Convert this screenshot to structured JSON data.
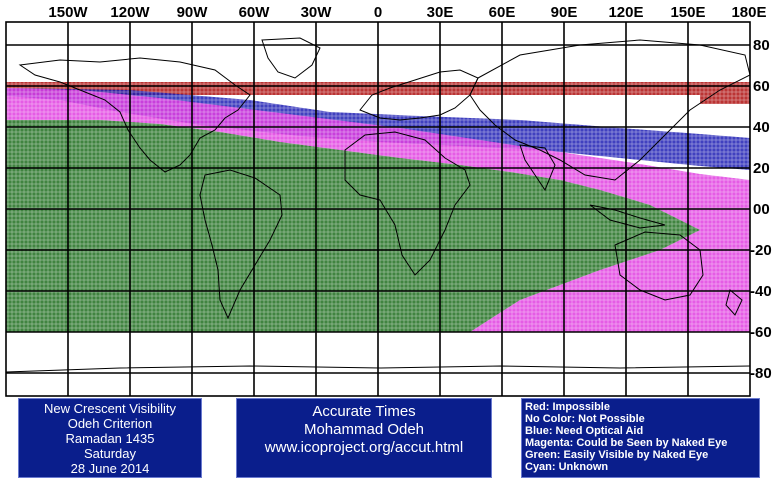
{
  "map": {
    "longitude_labels": [
      "150W",
      "120W",
      "90W",
      "60W",
      "30W",
      "0",
      "30E",
      "60E",
      "90E",
      "120E",
      "150E",
      "180E"
    ],
    "latitude_labels": [
      "80",
      "60",
      "40",
      "20",
      "00",
      "-20",
      "-40",
      "-60",
      "-80"
    ],
    "zones": [
      {
        "name": "Red",
        "color": "#b41e1e"
      },
      {
        "name": "Blue",
        "color": "#1e1eb4"
      },
      {
        "name": "Magenta",
        "color": "#e040e0"
      },
      {
        "name": "Green",
        "color": "#1e6e1e"
      }
    ]
  },
  "left_box": {
    "line1": "New Crescent Visibility",
    "line2": "Odeh Criterion",
    "line3": "Ramadan 1435",
    "line4": "Saturday",
    "line5": "28 June 2014"
  },
  "middle_box": {
    "line1": "Accurate Times",
    "line2": "Mohammad Odeh",
    "line3": "www.icoproject.org/accut.html"
  },
  "legend": {
    "item1": "Red: Impossible",
    "item2": "No Color: Not Possible",
    "item3": "Blue: Need Optical Aid",
    "item4": "Magenta: Could be Seen by Naked Eye",
    "item5": "Green: Easily Visible by Naked Eye",
    "item6": "Cyan: Unknown"
  }
}
